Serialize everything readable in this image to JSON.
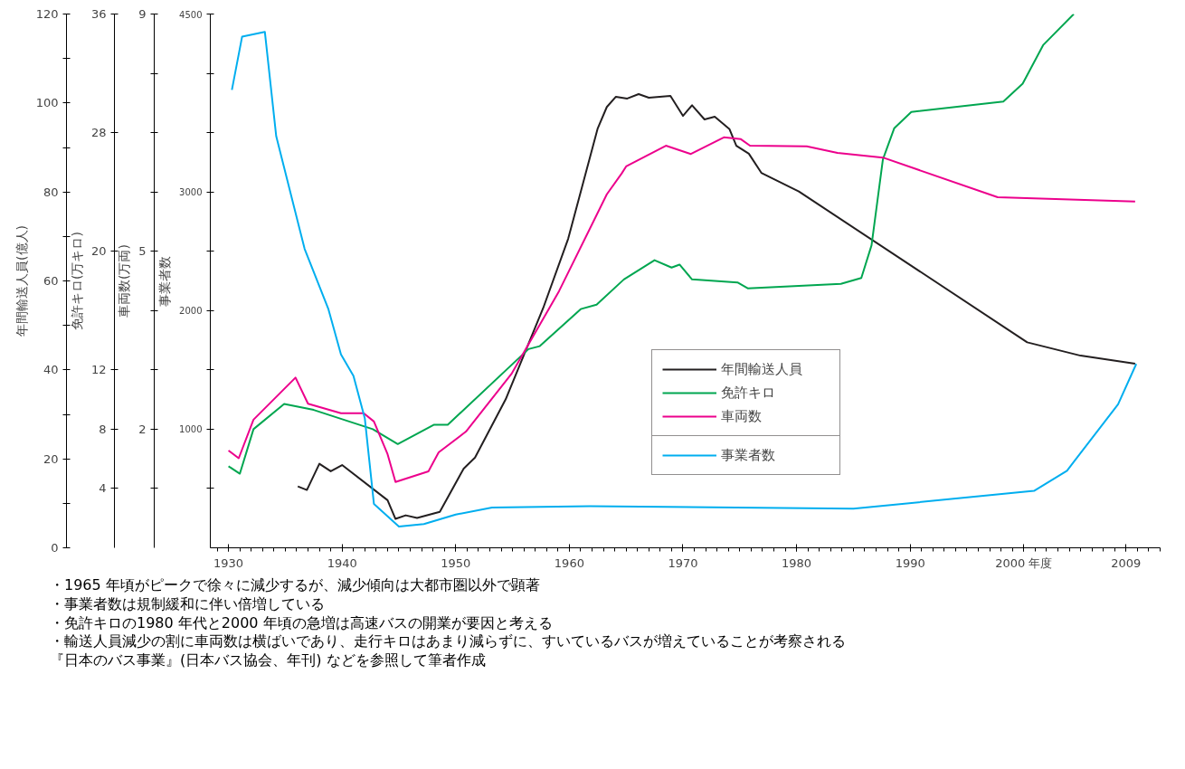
{
  "chart_data": [
    {
      "type": "line",
      "xlim": [
        1928.4,
        2012
      ],
      "xticks": [
        1930,
        1940,
        1950,
        1960,
        1970,
        1980,
        1990,
        {
          "value": 2000,
          "label": "2000 年度"
        },
        2009
      ],
      "ylabel": "年間輸送人員(億人)",
      "ylim": [
        0,
        120
      ],
      "yticks": [
        0,
        20,
        40,
        60,
        80,
        100,
        120
      ],
      "y2label": "免許キロ(万キロ)",
      "y2lim": [
        0,
        36
      ],
      "y2ticks": [
        4,
        8,
        12,
        20,
        28,
        36
      ],
      "y3label": "車両数(万両)",
      "y3lim": [
        0,
        9
      ],
      "y3ticks": [
        {
          "value": 1,
          "label": null
        },
        2,
        {
          "value": 3,
          "label": null
        },
        {
          "value": 4,
          "label": null
        },
        5,
        {
          "value": 6,
          "label": null
        },
        {
          "value": 7,
          "label": null
        },
        {
          "value": 8,
          "label": null
        },
        9
      ],
      "grid": false,
      "legend": "bottom",
      "line_style": "solid",
      "marker": "none",
      "series": [
        {
          "name": "年間輸送人員",
          "color": "#231f20",
          "x": [
            1936.1,
            1936.9,
            1938.0,
            1939.0,
            1940.0,
            1944.0,
            1944.7,
            1945.6,
            1946.6,
            1948.6,
            1950.7,
            1951.7,
            1954.4,
            1957.7,
            1959.9,
            1962.5,
            1963.3,
            1964.1,
            1965.1,
            1966.1,
            1967.0,
            1968.9,
            1970.0,
            1970.8,
            1971.9,
            1972.8,
            1974.1,
            1974.7,
            1975.8,
            1976.9,
            1980.2,
            2000.3,
            2005.0,
            2009.8
          ],
          "values": [
            13.8,
            13.0,
            18.9,
            17.2,
            18.6,
            10.7,
            6.5,
            7.3,
            6.7,
            8.1,
            17.8,
            20.3,
            33.4,
            53.9,
            69.5,
            94.3,
            99.1,
            101.4,
            101.0,
            102.0,
            101.2,
            101.6,
            97.1,
            99.5,
            96.3,
            96.9,
            94.1,
            90.4,
            88.6,
            84.3,
            80.1,
            46.2,
            43.2,
            41.4
          ]
        },
        {
          "name": "免許キロ",
          "color": "#00a650",
          "axis": "y2",
          "x": [
            1930.0,
            1931.0,
            1932.2,
            1934.9,
            1937.5,
            1942.7,
            1944.9,
            1948.1,
            1949.3,
            1956.4,
            1957.4,
            1961.0,
            1962.4,
            1964.8,
            1967.5,
            1969.0,
            1969.7,
            1970.8,
            1974.8,
            1975.7,
            1983.9,
            1985.7,
            1986.6,
            1987.6,
            1988.6,
            1990.1,
            1998.2,
            1999.9,
            2001.7,
            2004.4
          ],
          "values": [
            5.5,
            5.0,
            8.0,
            9.7,
            9.3,
            8.0,
            7.0,
            8.3,
            8.3,
            13.4,
            13.6,
            16.1,
            16.4,
            18.1,
            19.4,
            18.9,
            19.1,
            18.1,
            17.9,
            17.5,
            17.8,
            18.2,
            20.4,
            26.2,
            28.3,
            29.4,
            30.1,
            31.3,
            33.9,
            36.0
          ]
        },
        {
          "name": "車両数",
          "color": "#ec008c",
          "axis": "y3",
          "x": [
            1930.0,
            1930.9,
            1932.2,
            1935.9,
            1937.0,
            1939.9,
            1941.9,
            1942.8,
            1944.0,
            1944.7,
            1947.6,
            1948.5,
            1950.9,
            1954.9,
            1959.1,
            1963.3,
            1964.6,
            1965.0,
            1968.5,
            1970.7,
            1973.6,
            1975.1,
            1975.9,
            1980.9,
            1983.6,
            1987.6,
            1997.7,
            2009.8
          ],
          "values": [
            1.64,
            1.51,
            2.16,
            2.87,
            2.43,
            2.27,
            2.27,
            2.13,
            1.58,
            1.11,
            1.29,
            1.61,
            1.96,
            2.93,
            4.33,
            5.96,
            6.31,
            6.43,
            6.78,
            6.64,
            6.92,
            6.89,
            6.78,
            6.77,
            6.66,
            6.58,
            5.91,
            5.84
          ]
        }
      ],
      "annotations": [
        "・1965 年頃がピークで徐々に減少するが、減少傾向は大都市圏以外で顕著",
        "・事業者数は規制緩和に伴い倍増している",
        "・免許キロの1980 年代と2000 年頃の急増は高速バスの開業が要因と考える",
        "・輸送人員減少の割に車両数は横ばいであり、走行キロはあまり減らずに、すいているバスが増えていることが考察される",
        "『日本のバス事業』(日本バス協会、年刊) などを参照して筆者作成"
      ]
    },
    {
      "type": "line",
      "xlim": [
        1928.4,
        2012
      ],
      "ylabel": "事業者数",
      "ylim": [
        0,
        4500
      ],
      "yticks": [
        {
          "value": 500,
          "label": null
        },
        1000,
        {
          "value": 1500,
          "label": null
        },
        2000,
        {
          "value": 2500,
          "label": null
        },
        3000,
        {
          "value": 3500,
          "label": null
        },
        {
          "value": 4000,
          "label": null
        },
        4500
      ],
      "grid": false,
      "legend": "bottom",
      "line_style": "solid",
      "marker": "none",
      "series": [
        {
          "name": "事業者数",
          "color": "#00aeef",
          "x": [
            1930.3,
            1931.2,
            1933.2,
            1934.2,
            1936.7,
            1938.8,
            1939.9,
            1941.0,
            1942.0,
            1942.8,
            1945.0,
            1947.2,
            1950.0,
            1953.2,
            1961.8,
            1985.0,
            2000.9,
            2003.8,
            2008.3,
            2009.9
          ],
          "values": [
            3860,
            4310,
            4350,
            3470,
            2520,
            2010,
            1630,
            1450,
            1090,
            370,
            180,
            200,
            280,
            340,
            350,
            330,
            480,
            650,
            1210,
            1550
          ]
        }
      ]
    }
  ]
}
